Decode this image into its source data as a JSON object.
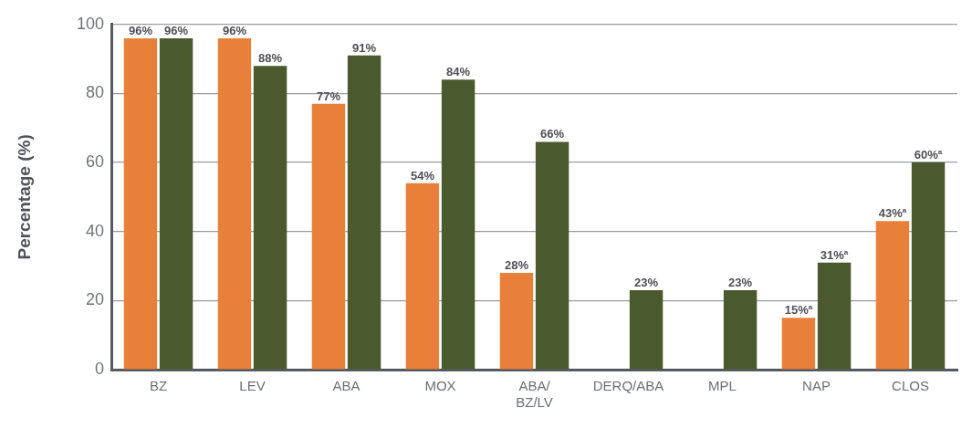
{
  "chart_data": {
    "type": "bar",
    "ylabel": "Percentage (%)",
    "categories": [
      "BZ",
      "LEV",
      "ABA",
      "MOX",
      "ABA/\nBZ/LV",
      "DERQ/ABA",
      "MPL",
      "NAP",
      "CLOS"
    ],
    "series": [
      {
        "color": "#e8803a",
        "values": [
          96,
          96,
          77,
          54,
          28,
          null,
          null,
          15,
          43
        ],
        "value_labels": [
          "96%",
          "96%",
          "77%",
          "54%",
          "28%",
          null,
          null,
          "15%$^{a}$",
          "43%$^{a}$"
        ]
      },
      {
        "color": "#4a5a2e",
        "values": [
          96,
          88,
          91,
          84,
          66,
          23,
          23,
          31,
          60
        ],
        "value_labels": [
          "96%",
          "88%",
          "91%",
          "84%",
          "66%",
          "23%",
          "23%",
          "31%$^{a}$",
          "60%$^{a}$"
        ]
      }
    ],
    "ylim": [
      0,
      100
    ],
    "yticks": [
      0,
      20,
      40,
      60,
      80,
      100
    ],
    "grid": "y",
    "legend": false
  }
}
